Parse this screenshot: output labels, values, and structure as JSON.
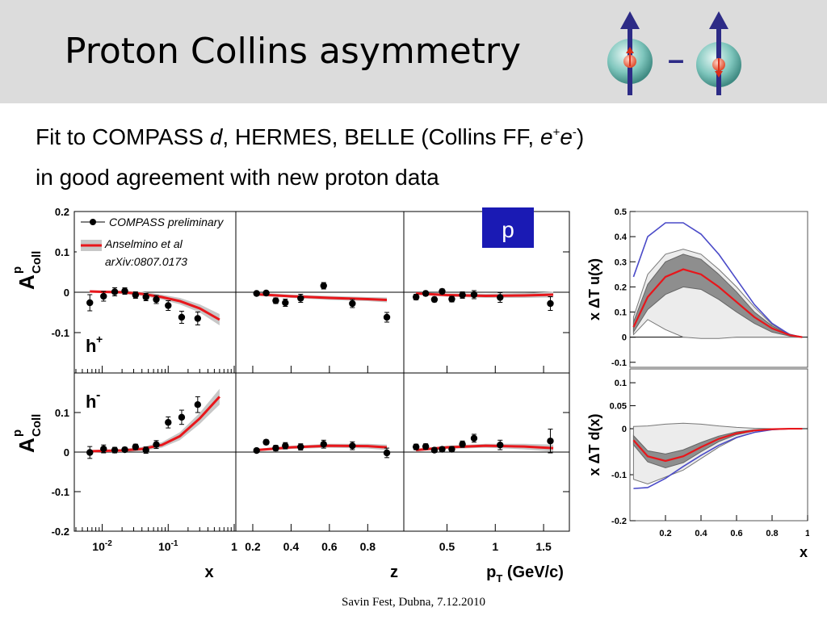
{
  "title": "Proton Collins asymmetry",
  "subtitle": {
    "line1_pre": "Fit to COMPASS ",
    "line1_d": "d",
    "line1_mid": ", HERMES, BELLE (Collins FF, ",
    "line1_e": "e",
    "line1_plus": "+",
    "line1_minus": "-",
    "line1_end": ")",
    "line2": "in good agreement with new proton data"
  },
  "footer": "Savin Fest, Dubna, 7.12.2010",
  "icon_minus": "–",
  "colors": {
    "data": "#000000",
    "fit": "#e8161b",
    "band": "#c7c7c7",
    "sphere": "#7fc6bd",
    "arrow": "#2d2b86",
    "blue_curve": "#4a4ac8",
    "p_box": "#1a1ab4"
  },
  "chart_data": [
    {
      "type": "scatter",
      "panel_label_top": "h+",
      "panel_label_bottom": "h-",
      "ylabel": "A Coll p",
      "ylim": [
        -0.2,
        0.2
      ],
      "y_ticks": [
        "0.2",
        "0.1",
        "0",
        "-0.1",
        "-0.2"
      ],
      "legend": {
        "compass": "COMPASS preliminary",
        "fit": "Anselmino et al",
        "fit_ref": "arXiv:0807.0173"
      },
      "p_label": "p",
      "subplots": [
        {
          "xlabel": "x",
          "xscale": "log",
          "xlim": [
            0.004,
            1
          ],
          "x_ticks": [
            "10-2",
            "10-1",
            "1"
          ],
          "h_plus": {
            "x": [
              0.0065,
              0.0105,
              0.0155,
              0.022,
              0.032,
              0.046,
              0.066,
              0.1,
              0.16,
              0.28
            ],
            "y": [
              -0.026,
              -0.01,
              0.001,
              0.003,
              -0.007,
              -0.012,
              -0.018,
              -0.033,
              -0.062,
              -0.065
            ],
            "err": [
              0.02,
              0.012,
              0.01,
              0.008,
              0.008,
              0.009,
              0.01,
              0.012,
              0.015,
              0.016
            ],
            "fit_x": [
              0.0065,
              0.01,
              0.02,
              0.04,
              0.08,
              0.15,
              0.3,
              0.6
            ],
            "fit_y": [
              0.002,
              0.001,
              0.0,
              -0.004,
              -0.012,
              -0.022,
              -0.04,
              -0.068
            ],
            "fit_band": [
              0.003,
              0.003,
              0.004,
              0.005,
              0.006,
              0.008,
              0.01,
              0.014
            ]
          },
          "h_minus": {
            "x": [
              0.0065,
              0.0105,
              0.0155,
              0.022,
              0.032,
              0.046,
              0.066,
              0.1,
              0.16,
              0.28
            ],
            "y": [
              -0.001,
              0.008,
              0.005,
              0.006,
              0.013,
              0.005,
              0.019,
              0.075,
              0.088,
              0.12
            ],
            "err": [
              0.015,
              0.01,
              0.007,
              0.006,
              0.007,
              0.008,
              0.01,
              0.014,
              0.018,
              0.02
            ],
            "fit_x": [
              0.0065,
              0.01,
              0.02,
              0.04,
              0.08,
              0.15,
              0.3,
              0.6
            ],
            "fit_y": [
              0.002,
              0.003,
              0.004,
              0.008,
              0.018,
              0.04,
              0.085,
              0.14
            ],
            "fit_band": [
              0.003,
              0.003,
              0.004,
              0.005,
              0.007,
              0.01,
              0.014,
              0.02
            ]
          }
        },
        {
          "xlabel": "z",
          "xscale": "linear",
          "xlim": [
            0.12,
            0.98
          ],
          "x_ticks": [
            "0.2",
            "0.4",
            "0.6",
            "0.8"
          ],
          "x_tick_values": [
            0.2,
            0.4,
            0.6,
            0.8
          ],
          "h_plus": {
            "x": [
              0.22,
              0.27,
              0.32,
              0.37,
              0.45,
              0.57,
              0.72,
              0.9
            ],
            "y": [
              -0.003,
              -0.002,
              -0.021,
              -0.026,
              -0.015,
              0.016,
              -0.028,
              -0.062
            ],
            "err": [
              0.005,
              0.005,
              0.007,
              0.009,
              0.01,
              0.008,
              0.01,
              0.012
            ],
            "fit_x": [
              0.22,
              0.4,
              0.6,
              0.8,
              0.9
            ],
            "fit_y": [
              -0.005,
              -0.01,
              -0.014,
              -0.017,
              -0.019
            ],
            "fit_band": [
              0.004,
              0.004,
              0.005,
              0.005,
              0.006
            ]
          },
          "h_minus": {
            "x": [
              0.22,
              0.27,
              0.32,
              0.37,
              0.45,
              0.57,
              0.72,
              0.9
            ],
            "y": [
              0.004,
              0.025,
              0.01,
              0.016,
              0.013,
              0.02,
              0.016,
              -0.002
            ],
            "err": [
              0.005,
              0.006,
              0.007,
              0.008,
              0.008,
              0.01,
              0.01,
              0.012
            ],
            "fit_x": [
              0.22,
              0.4,
              0.6,
              0.8,
              0.9
            ],
            "fit_y": [
              0.005,
              0.012,
              0.016,
              0.015,
              0.012
            ],
            "fit_band": [
              0.003,
              0.004,
              0.005,
              0.006,
              0.007
            ]
          }
        },
        {
          "xlabel": "pT (GeV/c)",
          "xscale": "linear",
          "xlim": [
            0.07,
            1.75
          ],
          "x_ticks": [
            "0.5",
            "1",
            "1.5"
          ],
          "x_tick_values": [
            0.5,
            1.0,
            1.5
          ],
          "h_plus": {
            "x": [
              0.18,
              0.28,
              0.37,
              0.45,
              0.55,
              0.66,
              0.78,
              1.05,
              1.57
            ],
            "y": [
              -0.012,
              -0.003,
              -0.018,
              0.002,
              -0.017,
              -0.007,
              -0.006,
              -0.013,
              -0.028
            ],
            "err": [
              0.007,
              0.006,
              0.006,
              0.006,
              0.007,
              0.008,
              0.01,
              0.012,
              0.017
            ],
            "fit_x": [
              0.18,
              0.5,
              0.9,
              1.3,
              1.6
            ],
            "fit_y": [
              -0.003,
              -0.007,
              -0.009,
              -0.008,
              -0.006
            ],
            "fit_band": [
              0.003,
              0.004,
              0.005,
              0.006,
              0.007
            ]
          },
          "h_minus": {
            "x": [
              0.18,
              0.28,
              0.37,
              0.45,
              0.55,
              0.66,
              0.78,
              1.05,
              1.57
            ],
            "y": [
              0.013,
              0.014,
              0.005,
              0.007,
              0.007,
              0.02,
              0.035,
              0.018,
              0.028
            ],
            "err": [
              0.007,
              0.007,
              0.006,
              0.006,
              0.007,
              0.008,
              0.01,
              0.012,
              0.03
            ],
            "fit_x": [
              0.18,
              0.5,
              0.9,
              1.3,
              1.6
            ],
            "fit_y": [
              0.005,
              0.012,
              0.016,
              0.014,
              0.01
            ],
            "fit_band": [
              0.003,
              0.004,
              0.005,
              0.007,
              0.009
            ]
          }
        }
      ]
    },
    {
      "type": "line",
      "xlabel": "x",
      "xlim": [
        0.0,
        1.0
      ],
      "x_ticks": [
        "0.2",
        "0.4",
        "0.6",
        "0.8",
        "1"
      ],
      "top": {
        "ylabel": "x ΔT u(x)",
        "ylim": [
          -0.12,
          0.5
        ],
        "y_ticks": [
          "0.5",
          "0.4",
          "0.3",
          "0.2",
          "0.1",
          "0",
          "-0.1"
        ],
        "x": [
          0.02,
          0.1,
          0.2,
          0.3,
          0.4,
          0.5,
          0.6,
          0.7,
          0.8,
          0.9,
          0.97
        ],
        "fit": [
          0.04,
          0.16,
          0.24,
          0.27,
          0.25,
          0.2,
          0.14,
          0.08,
          0.035,
          0.008,
          0.0
        ],
        "inner_band_low": [
          0.02,
          0.11,
          0.17,
          0.2,
          0.19,
          0.15,
          0.1,
          0.055,
          0.02,
          0.004,
          0.0
        ],
        "inner_band_high": [
          0.06,
          0.21,
          0.3,
          0.33,
          0.31,
          0.25,
          0.18,
          0.1,
          0.045,
          0.01,
          0.0
        ],
        "outer_band_low": [
          0.01,
          0.07,
          0.03,
          0.0,
          -0.005,
          -0.005,
          0.0,
          0.0,
          0.0,
          0.0,
          0.0
        ],
        "outer_band_high": [
          0.08,
          0.25,
          0.33,
          0.35,
          0.33,
          0.27,
          0.2,
          0.12,
          0.05,
          0.012,
          0.0
        ],
        "positivity_bound": [
          0.24,
          0.4,
          0.455,
          0.455,
          0.41,
          0.33,
          0.23,
          0.13,
          0.055,
          0.01,
          0.0
        ]
      },
      "bottom": {
        "ylabel": "x ΔT d(x)",
        "ylim": [
          -0.2,
          0.13
        ],
        "y_ticks": [
          "0.1",
          "0.05",
          "0",
          "-0.1",
          "-0.2"
        ],
        "x": [
          0.02,
          0.1,
          0.2,
          0.3,
          0.4,
          0.5,
          0.6,
          0.7,
          0.8,
          0.9,
          0.97
        ],
        "fit": [
          -0.025,
          -0.06,
          -0.07,
          -0.06,
          -0.04,
          -0.022,
          -0.01,
          -0.004,
          -0.001,
          0.0,
          0.0
        ],
        "inner_band_low": [
          -0.035,
          -0.072,
          -0.085,
          -0.074,
          -0.05,
          -0.028,
          -0.013,
          -0.005,
          -0.001,
          0.0,
          0.0
        ],
        "inner_band_high": [
          -0.015,
          -0.048,
          -0.055,
          -0.046,
          -0.03,
          -0.016,
          -0.007,
          -0.002,
          0.0,
          0.0,
          0.0
        ],
        "outer_band_low": [
          -0.11,
          -0.12,
          -0.105,
          -0.09,
          -0.065,
          -0.04,
          -0.02,
          -0.008,
          -0.002,
          0.0,
          0.0
        ],
        "outer_band_high": [
          0.005,
          0.006,
          0.01,
          0.012,
          0.01,
          0.006,
          0.003,
          0.001,
          0.0,
          0.0,
          0.0
        ],
        "positivity_bound": [
          -0.13,
          -0.128,
          -0.108,
          -0.082,
          -0.058,
          -0.036,
          -0.019,
          -0.008,
          -0.002,
          0.0,
          0.0
        ]
      }
    }
  ]
}
